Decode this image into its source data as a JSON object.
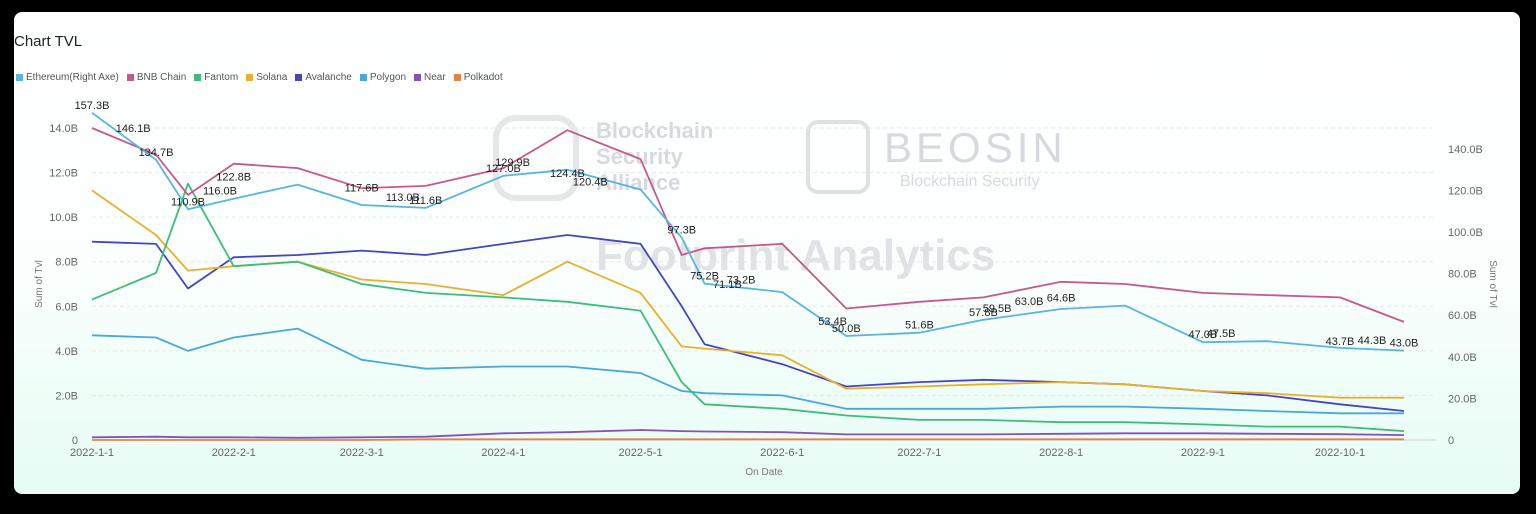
{
  "chart_data": {
    "type": "line",
    "title": "Chart TVL",
    "xlabel": "On Date",
    "ylabel_left": "Sum of Tvl",
    "ylabel_right": "Sum of Tvl",
    "x_ticks": [
      "2022-1-1",
      "2022-2-1",
      "2022-3-1",
      "2022-4-1",
      "2022-5-1",
      "2022-6-1",
      "2022-7-1",
      "2022-8-1",
      "2022-9-1",
      "2022-10-1"
    ],
    "y_left_ticks": [
      "0",
      "2.0B",
      "4.0B",
      "6.0B",
      "8.0B",
      "10.0B",
      "12.0B",
      "14.0B"
    ],
    "y_right_ticks": [
      "0",
      "20.0B",
      "40.0B",
      "60.0B",
      "80.0B",
      "100.0B",
      "120.0B",
      "140.0B"
    ],
    "ylim_left": [
      0,
      14
    ],
    "ylim_right": [
      0,
      150
    ],
    "legend_position": "top-left",
    "grid": true,
    "watermarks": [
      "Blockchain",
      "Security",
      "Alliance",
      "BEOSIN",
      "Blockchain Security",
      "Footprint Analytics"
    ],
    "x": [
      "2022-01-01",
      "2022-01-15",
      "2022-01-22",
      "2022-02-01",
      "2022-02-15",
      "2022-03-01",
      "2022-03-15",
      "2022-04-01",
      "2022-04-15",
      "2022-05-01",
      "2022-05-10",
      "2022-05-15",
      "2022-06-01",
      "2022-06-15",
      "2022-07-01",
      "2022-07-15",
      "2022-08-01",
      "2022-08-15",
      "2022-09-01",
      "2022-09-15",
      "2022-10-01",
      "2022-10-15"
    ],
    "series": [
      {
        "name": "Ethereum(Right Axe)",
        "axis": "right",
        "color": "#59b4de",
        "values": [
          157.3,
          134.7,
          110.9,
          116.0,
          122.8,
          113.0,
          111.6,
          127.0,
          129.9,
          120.4,
          97.3,
          75.2,
          71.1,
          50.0,
          51.6,
          57.8,
          63.0,
          64.6,
          47.0,
          47.5,
          44.3,
          43.0
        ]
      },
      {
        "name": "BNB Chain",
        "axis": "left",
        "color": "#c9588a",
        "values": [
          14.0,
          12.8,
          11.0,
          12.4,
          12.2,
          11.3,
          11.4,
          12.2,
          13.9,
          12.6,
          8.3,
          8.6,
          8.8,
          5.9,
          6.2,
          6.4,
          7.1,
          7.0,
          6.6,
          6.5,
          6.4,
          5.3
        ]
      },
      {
        "name": "Fantom",
        "axis": "left",
        "color": "#3ebd7a",
        "values": [
          6.3,
          7.5,
          11.5,
          7.8,
          8.0,
          7.0,
          6.6,
          6.4,
          6.2,
          5.8,
          2.6,
          1.6,
          1.4,
          1.1,
          0.9,
          0.9,
          0.8,
          0.8,
          0.7,
          0.6,
          0.6,
          0.4
        ]
      },
      {
        "name": "Solana",
        "axis": "left",
        "color": "#e8b030",
        "values": [
          11.2,
          9.2,
          7.6,
          7.8,
          8.0,
          7.2,
          7.0,
          6.5,
          8.0,
          6.6,
          4.2,
          4.1,
          3.8,
          2.3,
          2.4,
          2.5,
          2.6,
          2.5,
          2.2,
          2.1,
          1.9,
          1.9
        ]
      },
      {
        "name": "Avalanche",
        "axis": "left",
        "color": "#4544c2",
        "values": [
          8.9,
          8.8,
          6.8,
          8.2,
          8.3,
          8.5,
          8.3,
          8.8,
          9.2,
          8.8,
          6.0,
          4.3,
          3.4,
          2.4,
          2.6,
          2.7,
          2.6,
          2.5,
          2.2,
          2.0,
          1.6,
          1.3
        ]
      },
      {
        "name": "Polygon",
        "axis": "left",
        "color": "#4aa8d8",
        "values": [
          4.7,
          4.6,
          4.0,
          4.6,
          5.0,
          3.6,
          3.2,
          3.3,
          3.3,
          3.0,
          2.2,
          2.1,
          2.0,
          1.4,
          1.4,
          1.4,
          1.5,
          1.5,
          1.4,
          1.3,
          1.2,
          1.2
        ]
      },
      {
        "name": "Near",
        "axis": "left",
        "color": "#8452b8",
        "values": [
          0.12,
          0.15,
          0.12,
          0.12,
          0.1,
          0.12,
          0.15,
          0.3,
          0.35,
          0.45,
          0.4,
          0.38,
          0.35,
          0.25,
          0.25,
          0.25,
          0.28,
          0.3,
          0.3,
          0.28,
          0.26,
          0.22
        ]
      },
      {
        "name": "Polkadot",
        "axis": "left",
        "color": "#e8804a",
        "values": [
          0.0,
          0.0,
          0.0,
          0.0,
          0.0,
          0.0,
          0.03,
          0.03,
          0.03,
          0.03,
          0.03,
          0.03,
          0.03,
          0.03,
          0.03,
          0.03,
          0.03,
          0.03,
          0.03,
          0.03,
          0.03,
          0.03
        ]
      }
    ],
    "data_labels": [
      {
        "x": "2022-01-01",
        "text": "157.3B"
      },
      {
        "x": "2022-01-10",
        "text": "146.1B"
      },
      {
        "x": "2022-01-15",
        "text": "134.7B"
      },
      {
        "x": "2022-01-22",
        "text": "110.9B"
      },
      {
        "x": "2022-01-29",
        "text": "116.0B"
      },
      {
        "x": "2022-02-01",
        "text": "122.8B"
      },
      {
        "x": "2022-03-01",
        "text": "117.6B"
      },
      {
        "x": "2022-03-10",
        "text": "113.0B"
      },
      {
        "x": "2022-03-15",
        "text": "111.6B"
      },
      {
        "x": "2022-04-01",
        "text": "127.0B"
      },
      {
        "x": "2022-04-03",
        "text": "129.9B"
      },
      {
        "x": "2022-04-15",
        "text": "124.4B"
      },
      {
        "x": "2022-04-20",
        "text": "120.4B"
      },
      {
        "x": "2022-05-10",
        "text": "97.3B"
      },
      {
        "x": "2022-05-15",
        "text": "75.2B"
      },
      {
        "x": "2022-05-20",
        "text": "71.1B"
      },
      {
        "x": "2022-05-23",
        "text": "73.2B"
      },
      {
        "x": "2022-06-12",
        "text": "53.4B"
      },
      {
        "x": "2022-06-15",
        "text": "50.0B"
      },
      {
        "x": "2022-07-01",
        "text": "51.6B"
      },
      {
        "x": "2022-07-15",
        "text": "57.8B"
      },
      {
        "x": "2022-07-18",
        "text": "59.5B"
      },
      {
        "x": "2022-07-25",
        "text": "63.0B"
      },
      {
        "x": "2022-08-01",
        "text": "64.6B"
      },
      {
        "x": "2022-09-01",
        "text": "47.0B"
      },
      {
        "x": "2022-09-05",
        "text": "47.5B"
      },
      {
        "x": "2022-10-01",
        "text": "43.7B"
      },
      {
        "x": "2022-10-08",
        "text": "44.3B"
      },
      {
        "x": "2022-10-15",
        "text": "43.0B"
      }
    ]
  }
}
